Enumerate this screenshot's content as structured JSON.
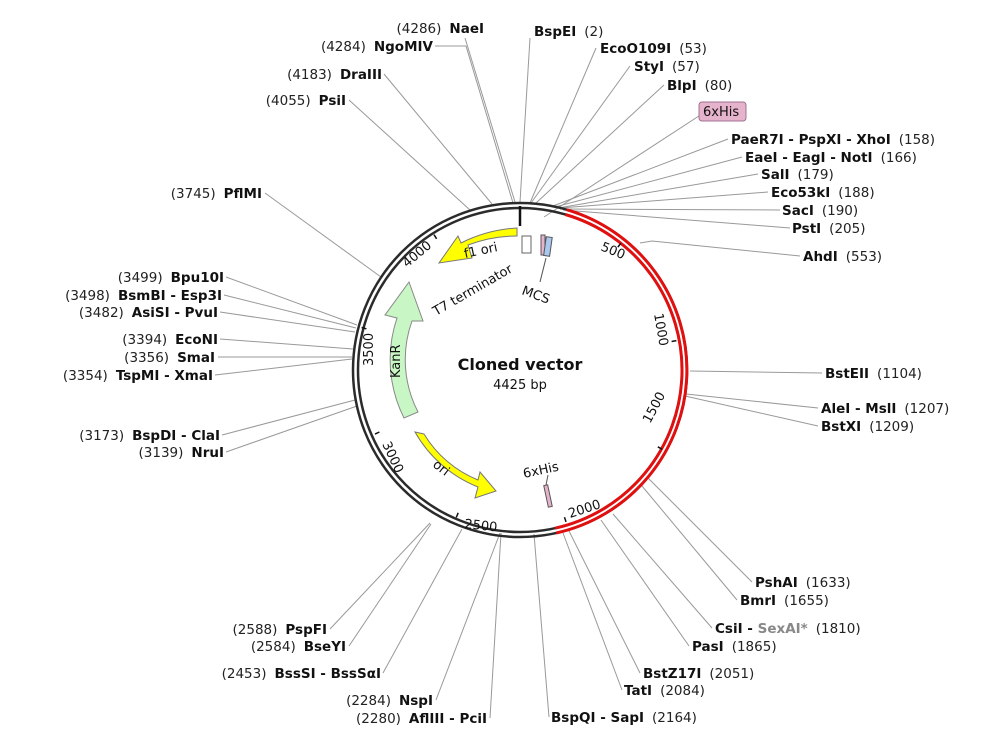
{
  "map": {
    "title": "Cloned vector",
    "subtitle": "4425 bp",
    "colors": {
      "backbone": "#2b2b2b",
      "insert": "#e01010",
      "ori_feature": "#ffff00",
      "kanr_feature": "#c8f7c5",
      "leader_line": "#999999"
    }
  },
  "ticks": [
    "500",
    "1000",
    "1500",
    "2000",
    "2500",
    "3000",
    "3500",
    "4000"
  ],
  "features": {
    "f1_ori": "f1 ori",
    "t7_terminator": "T7 terminator",
    "mcs": "MCS",
    "kanr": "KanR",
    "ori": "ori",
    "his_bottom": "6xHis",
    "his_badge": "6xHis"
  },
  "sites": [
    {
      "name": "NaeI",
      "pos": "(4286)"
    },
    {
      "name": "NgoMIV",
      "pos": "(4284)"
    },
    {
      "name": "DraIII",
      "pos": "(4183)"
    },
    {
      "name": "PsiI",
      "pos": "(4055)"
    },
    {
      "name": "PflMI",
      "pos": "(3745)"
    },
    {
      "name": "Bpu10I",
      "pos": "(3499)"
    },
    {
      "name": "BsmBI - Esp3I",
      "pos": "(3498)"
    },
    {
      "name": "AsiSI - PvuI",
      "pos": "(3482)"
    },
    {
      "name": "EcoNI",
      "pos": "(3394)"
    },
    {
      "name": "SmaI",
      "pos": "(3356)"
    },
    {
      "name": "TspMI - XmaI",
      "pos": "(3354)"
    },
    {
      "name": "BspDI - ClaI",
      "pos": "(3173)"
    },
    {
      "name": "NruI",
      "pos": "(3139)"
    },
    {
      "name": "PspFI",
      "pos": "(2588)"
    },
    {
      "name": "BseYI",
      "pos": "(2584)"
    },
    {
      "name": "BssSI - BssSαI",
      "pos": "(2453)"
    },
    {
      "name": "NspI",
      "pos": "(2284)"
    },
    {
      "name": "AflIII - PciI",
      "pos": "(2280)"
    },
    {
      "name": "BspEI",
      "pos": "(2)"
    },
    {
      "name": "EcoO109I",
      "pos": "(53)"
    },
    {
      "name": "StyI",
      "pos": "(57)"
    },
    {
      "name": "BlpI",
      "pos": "(80)"
    },
    {
      "name": "PaeR7I - PspXI - XhoI",
      "pos": "(158)"
    },
    {
      "name": "EaeI - EagI - NotI",
      "pos": "(166)"
    },
    {
      "name": "SalI",
      "pos": "(179)"
    },
    {
      "name": "Eco53kI",
      "pos": "(188)"
    },
    {
      "name": "SacI",
      "pos": "(190)"
    },
    {
      "name": "PstI",
      "pos": "(205)"
    },
    {
      "name": "AhdI",
      "pos": "(553)"
    },
    {
      "name": "BstEII",
      "pos": "(1104)"
    },
    {
      "name": "AleI - MslI",
      "pos": "(1207)"
    },
    {
      "name": "BstXI",
      "pos": "(1209)"
    },
    {
      "name": "PshAI",
      "pos": "(1633)"
    },
    {
      "name": "BmrI",
      "pos": "(1655)"
    },
    {
      "name": "CsiI",
      "pos": ""
    },
    {
      "name": "SexAI*",
      "pos": "(1810)"
    },
    {
      "name": "PasI",
      "pos": "(1865)"
    },
    {
      "name": "BstZ17I",
      "pos": "(2051)"
    },
    {
      "name": "TatI",
      "pos": "(2084)"
    },
    {
      "name": "BspQI - SapI",
      "pos": "(2164)"
    }
  ]
}
